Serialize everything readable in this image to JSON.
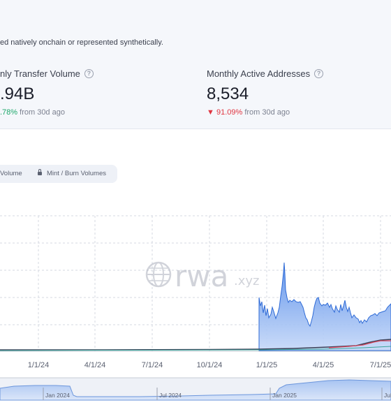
{
  "description": "ed natively onchain or represented synthetically.",
  "stats": [
    {
      "label": "nly Transfer Volume",
      "value": ".94B",
      "change_arrow": "",
      "change_value": ".78%",
      "change_suffix": "from 30d ago",
      "direction": "up"
    },
    {
      "label": "Monthly Active Addresses",
      "value": "8,534",
      "change_arrow": "▼",
      "change_value": "91.09%",
      "change_suffix": "from 30d ago",
      "direction": "down"
    }
  ],
  "toggles": {
    "volume_label": "Volume",
    "mint_burn_label": "Mint / Burn Volumes"
  },
  "watermark": {
    "brand": "rwa",
    "suffix": ".xyz"
  },
  "chart_data": {
    "type": "area",
    "x_ticks": [
      "1/1/24",
      "4/1/24",
      "7/1/24",
      "10/1/24",
      "1/1/25",
      "4/1/25",
      "7/1/25"
    ],
    "navigator_ticks": [
      "Jan 2024",
      "Jul 2024",
      "Jan 2025",
      "Jul"
    ],
    "grid": true,
    "colors": {
      "area": "#4d86e8",
      "line": "#2e6ad6",
      "secondary": "#3a3f55",
      "tertiary": "#d9455a"
    }
  }
}
